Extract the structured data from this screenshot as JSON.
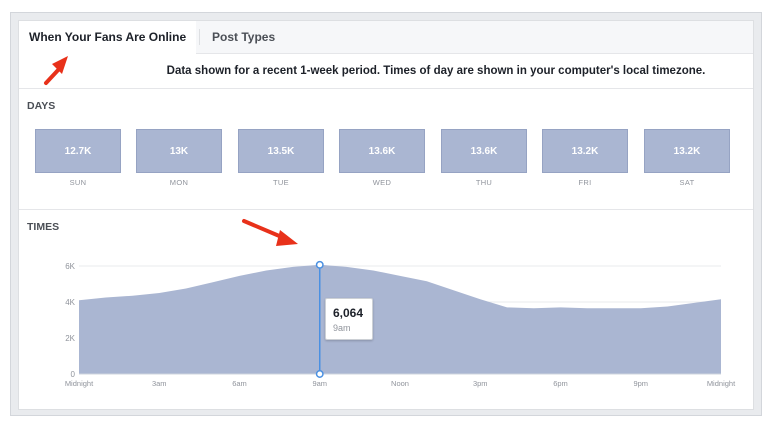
{
  "tabs": [
    {
      "label": "When Your Fans Are Online",
      "active": true
    },
    {
      "label": "Post Types",
      "active": false
    }
  ],
  "note": "Data shown for a recent 1-week period. Times of day are shown in your computer's local timezone.",
  "days_section": {
    "title": "DAYS",
    "days": [
      {
        "label": "SUN",
        "value": "12.7K"
      },
      {
        "label": "MON",
        "value": "13K"
      },
      {
        "label": "TUE",
        "value": "13.5K"
      },
      {
        "label": "WED",
        "value": "13.6K"
      },
      {
        "label": "THU",
        "value": "13.6K"
      },
      {
        "label": "FRI",
        "value": "13.2K"
      },
      {
        "label": "SAT",
        "value": "13.2K"
      }
    ]
  },
  "times_section": {
    "title": "TIMES"
  },
  "tooltip": {
    "value": "6,064",
    "time": "9am"
  },
  "colors": {
    "area_fill": "#aab6d2",
    "cursor": "#4a90e2",
    "arrow": "#e8311a"
  },
  "chart_data": {
    "type": "area",
    "x": [
      "Midnight",
      "1am",
      "2am",
      "3am",
      "4am",
      "5am",
      "6am",
      "7am",
      "8am",
      "9am",
      "10am",
      "11am",
      "Noon",
      "1pm",
      "2pm",
      "3pm",
      "4pm",
      "5pm",
      "6pm",
      "7pm",
      "8pm",
      "9pm",
      "10pm",
      "11pm",
      "Midnight"
    ],
    "values": [
      4100,
      4250,
      4350,
      4500,
      4750,
      5100,
      5450,
      5750,
      5950,
      6064,
      5950,
      5750,
      5450,
      5150,
      4650,
      4150,
      3700,
      3650,
      3700,
      3650,
      3650,
      3650,
      3750,
      3950,
      4150
    ],
    "x_ticks": [
      "Midnight",
      "3am",
      "6am",
      "9am",
      "Noon",
      "3pm",
      "6pm",
      "9pm",
      "Midnight"
    ],
    "y_ticks": [
      "0",
      "2K",
      "4K",
      "6K"
    ],
    "ylim": [
      0,
      6000
    ],
    "highlight_index": 9,
    "grid": true
  }
}
